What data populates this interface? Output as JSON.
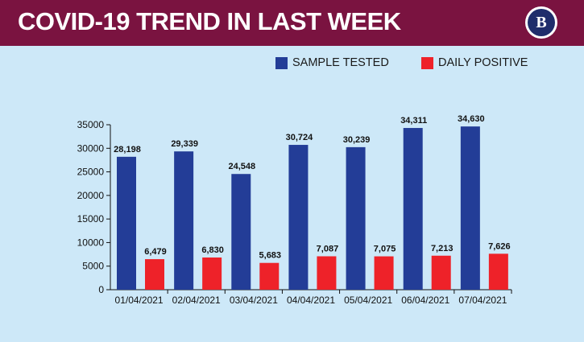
{
  "header": {
    "title": "COVID-19 TREND IN LAST WEEK",
    "logo_text": "B"
  },
  "colors": {
    "header_bg": "#7a1340",
    "background": "#cde8f8",
    "sample_tested": "#233d97",
    "daily_positive": "#ee2229"
  },
  "legend": {
    "sample_tested": "SAMPLE TESTED",
    "daily_positive": "DAILY POSITIVE"
  },
  "chart_data": {
    "type": "bar",
    "categories": [
      "01/04/2021",
      "02/04/2021",
      "03/04/2021",
      "04/04/2021",
      "05/04/2021",
      "06/04/2021",
      "07/04/2021"
    ],
    "series": [
      {
        "name": "SAMPLE TESTED",
        "values": [
          28198,
          29339,
          24548,
          30724,
          30239,
          34311,
          34630
        ],
        "labels": [
          "28,198",
          "29,339",
          "24,548",
          "30,724",
          "30,239",
          "34,311",
          "34,630"
        ]
      },
      {
        "name": "DAILY POSITIVE",
        "values": [
          6479,
          6830,
          5683,
          7087,
          7075,
          7213,
          7626
        ],
        "labels": [
          "6,479",
          "6,830",
          "5,683",
          "7,087",
          "7,075",
          "7,213",
          "7,626"
        ]
      }
    ],
    "yticks": [
      "0",
      "5000",
      "10000",
      "15000",
      "20000",
      "25000",
      "30000",
      "35000"
    ],
    "ylim": [
      0,
      35000
    ],
    "grid": false,
    "legend_position": "top-right"
  }
}
